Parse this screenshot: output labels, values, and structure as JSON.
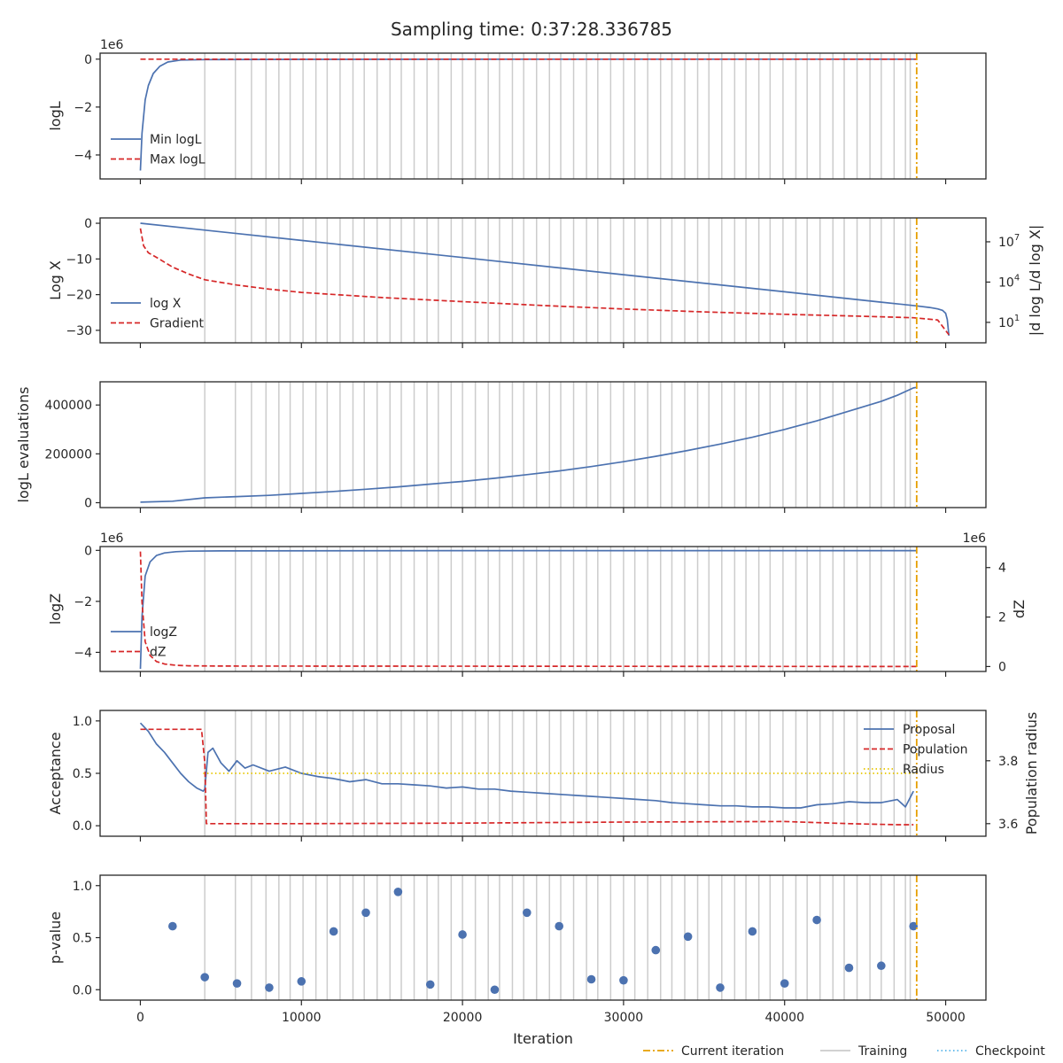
{
  "figure": {
    "title": "Sampling time: 0:37:28.336785",
    "xlabel": "Iteration",
    "x_tick_labels": [
      "0",
      "10000",
      "20000",
      "30000",
      "40000",
      "50000"
    ],
    "bottom_legend": [
      {
        "label": "Current iteration",
        "color": "#e69f00",
        "style": "dashdot"
      },
      {
        "label": "Training",
        "color": "#cccccc",
        "style": "solid"
      },
      {
        "label": "Checkpoint",
        "color": "#56b4e9",
        "style": "dotted"
      }
    ]
  },
  "chart_data": [
    {
      "type": "line",
      "title": "",
      "ylabel": "logL",
      "offset_text": "1e6",
      "xlim": [
        -2500,
        52500
      ],
      "ylim": [
        -5.0,
        0.25
      ],
      "y_ticks": [
        0,
        -2,
        -4
      ],
      "y_tick_labels": [
        "0",
        "−2",
        "−4"
      ],
      "legend": "lower-left",
      "series": [
        {
          "name": "Min logL",
          "color": "#4c72b0",
          "style": "solid",
          "x": [
            0,
            100,
            300,
            500,
            800,
            1200,
            1700,
            2500,
            4000,
            10000,
            20000,
            30000,
            40000,
            48200
          ],
          "y": [
            -4.65,
            -3.1,
            -1.7,
            -1.1,
            -0.6,
            -0.3,
            -0.12,
            -0.04,
            -0.02,
            -0.01,
            -0.005,
            -0.003,
            -0.002,
            -0.001
          ]
        },
        {
          "name": "Max logL",
          "color": "#d62728",
          "style": "dashed",
          "x": [
            0,
            48200
          ],
          "y": [
            0.0,
            0.0
          ]
        }
      ]
    },
    {
      "type": "line",
      "title": "",
      "ylabel": "Log X",
      "y2label": "|d log L/d log X|",
      "xlim": [
        -2500,
        52500
      ],
      "ylim": [
        -33.5,
        1.5
      ],
      "y_ticks": [
        0,
        -10,
        -20,
        -30
      ],
      "y_tick_labels": [
        "0",
        "−10",
        "−20",
        "−30"
      ],
      "y2_scale": "log",
      "y2_ticks": [
        10,
        10000,
        10000000
      ],
      "y2_tick_labels": [
        "10",
        "10",
        "10"
      ],
      "y2_tick_exponents": [
        "1",
        "4",
        "7"
      ],
      "legend": "lower-left",
      "series": [
        {
          "name": "log X",
          "color": "#4c72b0",
          "style": "solid",
          "axis": "left",
          "x": [
            0,
            10000,
            20000,
            30000,
            40000,
            46000,
            48200,
            49000,
            49500,
            49800,
            50000,
            50100,
            50200
          ],
          "y": [
            0.0,
            -4.8,
            -9.6,
            -14.4,
            -19.2,
            -22.1,
            -23.15,
            -23.6,
            -24.0,
            -24.4,
            -25.2,
            -27.0,
            -31.5
          ]
        },
        {
          "name": "Gradient",
          "color": "#d62728",
          "style": "dashed",
          "axis": "right",
          "x": [
            0,
            200,
            500,
            1000,
            2000,
            3000,
            4000,
            6000,
            8000,
            10000,
            15000,
            20000,
            25000,
            30000,
            35000,
            40000,
            45000,
            48000,
            49500,
            50200
          ],
          "y": [
            100000000,
            5000000,
            1500000,
            700000,
            130000,
            40000,
            15000,
            6000,
            3000,
            1700,
            700,
            350,
            180,
            100,
            60,
            40,
            28,
            22,
            15,
            1.2
          ]
        }
      ]
    },
    {
      "type": "line",
      "title": "",
      "ylabel": "logL evaluations",
      "xlim": [
        -2500,
        52500
      ],
      "ylim": [
        -20000,
        495000
      ],
      "y_ticks": [
        0,
        200000,
        400000
      ],
      "y_tick_labels": [
        "0",
        "200000",
        "400000"
      ],
      "series": [
        {
          "name": "",
          "color": "#4c72b0",
          "style": "solid",
          "x": [
            0,
            2000,
            4000,
            6000,
            8000,
            10000,
            12000,
            14000,
            16000,
            18000,
            20000,
            22000,
            24000,
            26000,
            28000,
            30000,
            32000,
            34000,
            36000,
            38000,
            40000,
            42000,
            44000,
            46000,
            47000,
            48000,
            48200
          ],
          "y": [
            2000,
            6000,
            20000,
            25000,
            30000,
            38000,
            46000,
            55000,
            65000,
            76000,
            87000,
            100000,
            115000,
            130000,
            148000,
            168000,
            190000,
            214000,
            240000,
            268000,
            300000,
            335000,
            375000,
            415000,
            440000,
            470000,
            472000
          ]
        }
      ]
    },
    {
      "type": "line",
      "title": "",
      "ylabel": "logZ",
      "y2label": "dZ",
      "offset_text": "1e6",
      "offset_text_right": "1e6",
      "xlim": [
        -2500,
        52500
      ],
      "ylim": [
        -4.75,
        0.15
      ],
      "y_ticks": [
        0,
        -2,
        -4
      ],
      "y_tick_labels": [
        "0",
        "−2",
        "−4"
      ],
      "y2lim": [
        -0.2,
        4.85
      ],
      "y2_ticks": [
        0,
        2,
        4
      ],
      "y2_tick_labels": [
        "0",
        "2",
        "4"
      ],
      "legend": "lower-left",
      "series": [
        {
          "name": "logZ",
          "color": "#4c72b0",
          "style": "solid",
          "axis": "left",
          "x": [
            0,
            100,
            300,
            600,
            1000,
            1500,
            2200,
            3000,
            5000,
            20000,
            48200
          ],
          "y": [
            -4.65,
            -2.6,
            -1.0,
            -0.45,
            -0.2,
            -0.1,
            -0.05,
            -0.03,
            -0.02,
            -0.01,
            -0.01
          ]
        },
        {
          "name": "dZ",
          "color": "#d62728",
          "style": "dashed",
          "axis": "right",
          "x": [
            0,
            100,
            300,
            600,
            1000,
            1500,
            2200,
            3000,
            5000,
            48200
          ],
          "y": [
            4.65,
            2.6,
            1.0,
            0.45,
            0.2,
            0.1,
            0.05,
            0.03,
            0.02,
            0.0
          ]
        }
      ]
    },
    {
      "type": "line",
      "title": "",
      "ylabel": "Acceptance",
      "y2label": "Population radius",
      "xlim": [
        -2500,
        52500
      ],
      "ylim": [
        -0.1,
        1.1
      ],
      "y_ticks": [
        0.0,
        0.5,
        1.0
      ],
      "y_tick_labels": [
        "0.0",
        "0.5",
        "1.0"
      ],
      "y2lim": [
        3.56,
        3.96
      ],
      "y2_ticks": [
        3.6,
        3.8
      ],
      "y2_tick_labels": [
        "3.6",
        "3.8"
      ],
      "legend": "upper-right",
      "series": [
        {
          "name": "Proposal",
          "color": "#4c72b0",
          "style": "solid",
          "axis": "left",
          "x": [
            0,
            500,
            1000,
            1500,
            2000,
            2500,
            3000,
            3500,
            3900,
            4000,
            4200,
            4500,
            5000,
            5500,
            6000,
            6500,
            7000,
            8000,
            9000,
            10000,
            11000,
            12000,
            13000,
            14000,
            15000,
            16000,
            17000,
            18000,
            19000,
            20000,
            21000,
            22000,
            23000,
            24000,
            25000,
            26000,
            27000,
            28000,
            29000,
            30000,
            31000,
            32000,
            33000,
            34000,
            35000,
            36000,
            37000,
            38000,
            39000,
            40000,
            41000,
            42000,
            43000,
            44000,
            45000,
            46000,
            47000,
            47500,
            48000
          ],
          "y": [
            0.98,
            0.9,
            0.78,
            0.7,
            0.6,
            0.5,
            0.42,
            0.36,
            0.33,
            0.35,
            0.7,
            0.74,
            0.6,
            0.52,
            0.62,
            0.55,
            0.58,
            0.52,
            0.56,
            0.5,
            0.47,
            0.45,
            0.42,
            0.44,
            0.4,
            0.4,
            0.39,
            0.38,
            0.36,
            0.37,
            0.35,
            0.35,
            0.33,
            0.32,
            0.31,
            0.3,
            0.29,
            0.28,
            0.27,
            0.26,
            0.25,
            0.24,
            0.22,
            0.21,
            0.2,
            0.19,
            0.19,
            0.18,
            0.18,
            0.17,
            0.17,
            0.2,
            0.21,
            0.23,
            0.22,
            0.22,
            0.25,
            0.18,
            0.33
          ]
        },
        {
          "name": "Population",
          "color": "#d62728",
          "style": "dashed",
          "axis": "left",
          "x": [
            0,
            3800,
            4000,
            4100,
            10000,
            20000,
            30000,
            40000,
            44000,
            47000,
            48000
          ],
          "y": [
            0.92,
            0.92,
            0.6,
            0.02,
            0.02,
            0.025,
            0.035,
            0.04,
            0.02,
            0.01,
            0.01
          ]
        },
        {
          "name": "Radius",
          "color": "#e8c600",
          "style": "dotted",
          "axis": "left",
          "x": [
            3900,
            48000
          ],
          "y": [
            0.5,
            0.5
          ]
        }
      ]
    },
    {
      "type": "scatter",
      "title": "",
      "ylabel": "p-value",
      "xlim": [
        -2500,
        52500
      ],
      "ylim": [
        -0.1,
        1.1
      ],
      "y_ticks": [
        0.0,
        0.5,
        1.0
      ],
      "y_tick_labels": [
        "0.0",
        "0.5",
        "1.0"
      ],
      "series": [
        {
          "name": "",
          "color": "#4c72b0",
          "x": [
            2000,
            4000,
            6000,
            8000,
            10000,
            12000,
            14000,
            16000,
            18000,
            20000,
            22000,
            24000,
            26000,
            28000,
            30000,
            32000,
            34000,
            36000,
            38000,
            40000,
            42000,
            44000,
            46000,
            48000
          ],
          "y": [
            0.61,
            0.12,
            0.06,
            0.02,
            0.08,
            0.56,
            0.74,
            0.94,
            0.05,
            0.53,
            0.0,
            0.74,
            0.61,
            0.1,
            0.09,
            0.38,
            0.51,
            0.02,
            0.56,
            0.06,
            0.67,
            0.21,
            0.23,
            0.61
          ]
        }
      ]
    }
  ],
  "training_iterations": [
    4000,
    5900,
    6900,
    7800,
    8600,
    9300,
    10100,
    10900,
    11600,
    12400,
    13200,
    13900,
    14700,
    15500,
    16200,
    17000,
    17800,
    18500,
    19300,
    20000,
    20800,
    21600,
    22300,
    23100,
    23800,
    24600,
    25400,
    26100,
    26900,
    27700,
    28400,
    29200,
    30000,
    30700,
    31500,
    32300,
    33000,
    33800,
    34600,
    35300,
    36100,
    36900,
    37600,
    38400,
    39100,
    39900,
    40700,
    41400,
    42200,
    43000,
    43700,
    44500,
    45300,
    46000,
    46800,
    47500,
    47800
  ],
  "current_iteration": 48200
}
